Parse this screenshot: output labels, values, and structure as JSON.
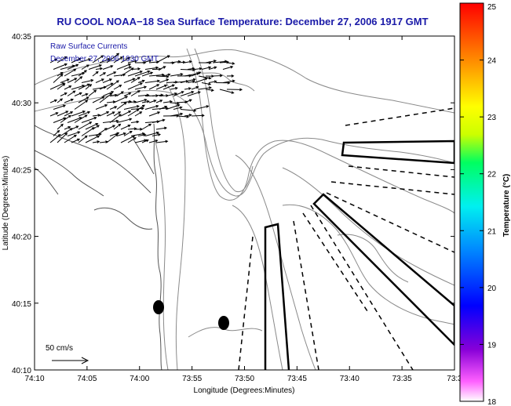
{
  "title": "RU COOL  NOAA−18  Sea Surface Temperature:  December 27, 2006 1917 GMT",
  "legend": {
    "line1": "Raw Surface Currents",
    "line2": "December 27, 2006 1930 GMT"
  },
  "scale_label": "50 cm/s",
  "x_axis": {
    "label": "Longitude (Degrees:Minutes)",
    "ticks": [
      "74:10",
      "74:05",
      "74:00",
      "73:55",
      "73:50",
      "73:45",
      "73:40",
      "73:35",
      "73:3"
    ]
  },
  "y_axis": {
    "label": "Latitude (Degrees:Minutes)",
    "ticks": [
      "40:35",
      "40:30",
      "40:25",
      "40:20",
      "40:15",
      "40:10"
    ]
  },
  "colorbar": {
    "label": "Temperature (°C)",
    "ticks": [
      "25",
      "24",
      "23",
      "22",
      "21",
      "20",
      "19",
      "18"
    ],
    "min": 18,
    "max": 25
  }
}
